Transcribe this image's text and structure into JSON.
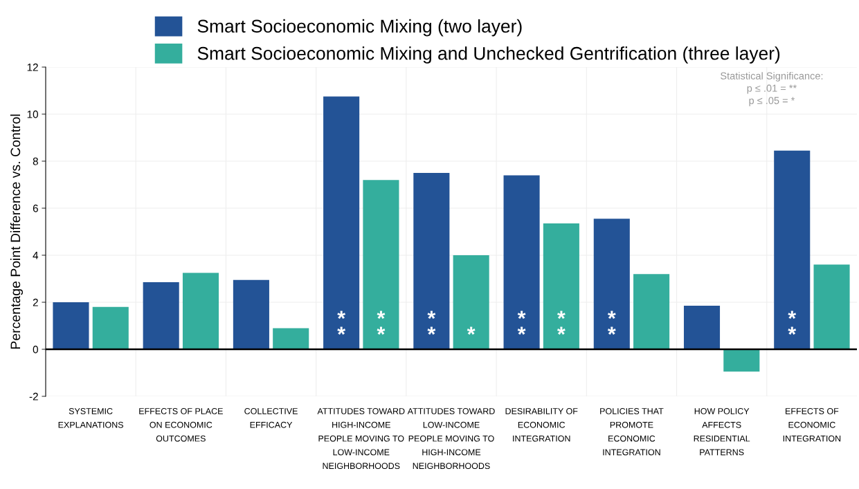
{
  "chart_data": {
    "type": "bar",
    "ylabel": "Percentage Point Difference vs. Control",
    "categories": [
      "SYSTEMIC\nEXPLANATIONS",
      "EFFECTS OF PLACE\nON ECONOMIC\nOUTCOMES",
      "COLLECTIVE\nEFFICACY",
      "ATTITUDES TOWARD\nHIGH-INCOME\nPEOPLE MOVING TO\nLOW-INCOME\nNEIGHBORHOODS",
      "ATTITUDES TOWARD\nLOW-INCOME\nPEOPLE MOVING TO\nHIGH-INCOME\nNEIGHBORHOODS",
      "DESIRABILITY OF\nECONOMIC\nINTEGRATION",
      "POLICIES THAT\nPROMOTE\nECONOMIC\nINTEGRATION",
      "HOW POLICY\nAFFECTS\nRESIDENTIAL\nPATTERNS",
      "EFFECTS OF\nECONOMIC\nINTEGRATION"
    ],
    "series": [
      {
        "name": "Smart Socioeconomic Mixing (two layer)",
        "color": "#235396",
        "values": [
          2.0,
          2.85,
          2.95,
          10.75,
          7.5,
          7.4,
          5.55,
          1.85,
          8.45
        ],
        "value_labels": [
          null,
          null,
          null,
          "**",
          "**",
          "**",
          "**",
          null,
          "**"
        ]
      },
      {
        "name": "Smart Socioeconomic Mixing and Unchecked Gentrification (three layer)",
        "color": "#34ae9d",
        "values": [
          1.8,
          3.25,
          0.9,
          7.2,
          4.0,
          5.35,
          3.2,
          -0.95,
          3.6
        ],
        "value_labels": [
          null,
          null,
          null,
          "**",
          "*",
          "**",
          null,
          null,
          null
        ]
      }
    ],
    "ylim": [
      -2,
      12
    ],
    "yticks": [
      {
        "value": -2,
        "label": "-2"
      },
      0,
      2,
      4,
      6,
      8,
      10,
      12
    ],
    "grid": true,
    "legend": "top",
    "annotations": [
      "Statistical Significance:",
      "p ≤ .01 = **",
      "p ≤ .05 = *"
    ]
  }
}
